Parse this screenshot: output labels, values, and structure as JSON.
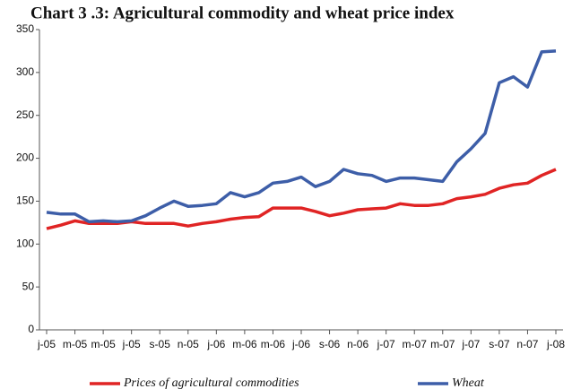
{
  "chart_data": {
    "type": "line",
    "title": "Chart 3 .3: Agricultural commodity and wheat price index",
    "categories": [
      "j-05",
      null,
      "m-05",
      null,
      "m-05",
      null,
      "j-05",
      null,
      "s-05",
      null,
      "n-05",
      null,
      "j-06",
      null,
      "m-06",
      null,
      "m-06",
      null,
      "j-06",
      null,
      "s-06",
      null,
      "n-06",
      null,
      "j-07",
      null,
      "m-07",
      null,
      "m-07",
      null,
      "j-07",
      null,
      "s-07",
      null,
      "n-07",
      null,
      "j-08"
    ],
    "series": [
      {
        "name": "Prices of agricultural commodities",
        "color": "#e02424",
        "values": [
          118,
          122,
          127,
          124,
          124,
          124,
          126,
          124,
          124,
          124,
          121,
          124,
          126,
          129,
          131,
          132,
          142,
          142,
          142,
          138,
          133,
          136,
          140,
          141,
          142,
          147,
          145,
          145,
          147,
          153,
          155,
          158,
          165,
          169,
          171,
          180,
          187
        ]
      },
      {
        "name": "Wheat",
        "color": "#3d5ea8",
        "values": [
          137,
          135,
          135,
          126,
          127,
          126,
          127,
          133,
          142,
          150,
          144,
          145,
          147,
          160,
          155,
          160,
          171,
          173,
          178,
          167,
          173,
          187,
          182,
          180,
          173,
          177,
          177,
          175,
          173,
          196,
          211,
          229,
          288,
          295,
          283,
          324,
          325
        ]
      }
    ],
    "ylim": [
      0,
      350
    ],
    "yticks": [
      0,
      50,
      100,
      150,
      200,
      250,
      300,
      350
    ],
    "grid": false
  }
}
